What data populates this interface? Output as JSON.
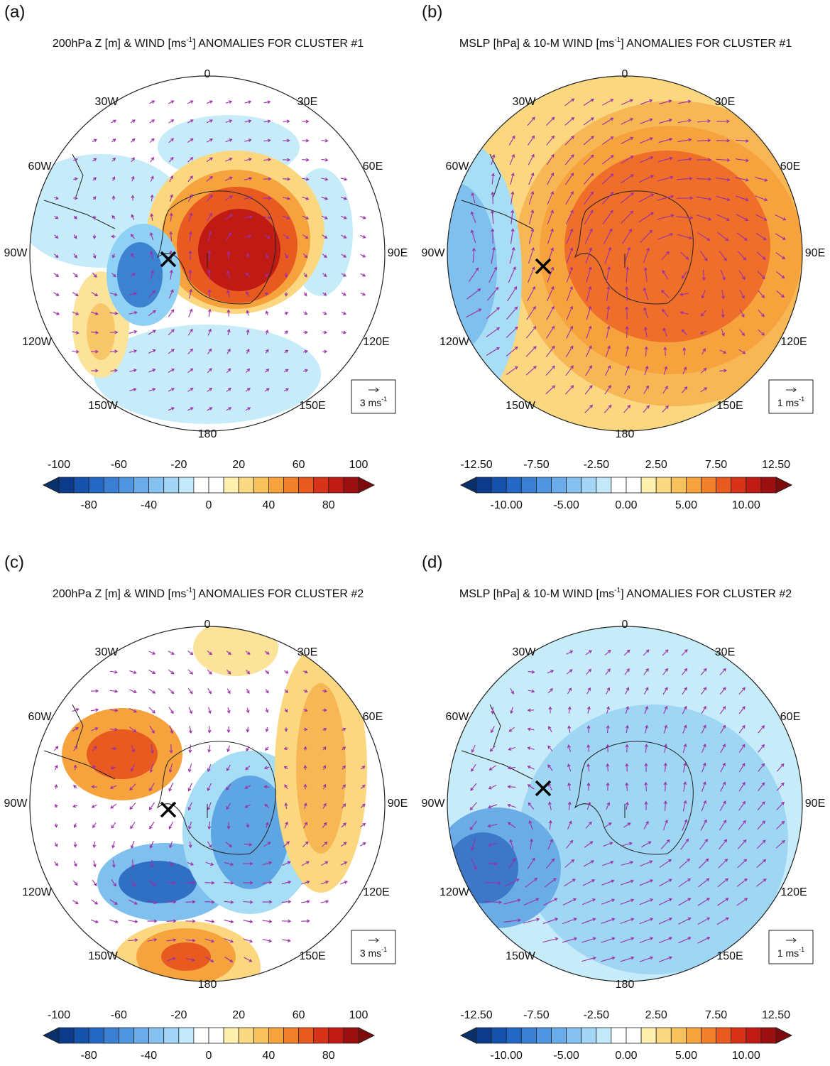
{
  "panels": [
    {
      "label": "(a)",
      "title": {
        "pre": "200hPa Z [m] & WIND [ms",
        "sup": "-1",
        "post": "] ANOMALIES FOR CLUSTER #1"
      },
      "longitudes": [
        "0",
        "30E",
        "60E",
        "90E",
        "120E",
        "150E",
        "180",
        "150W",
        "120W",
        "90W",
        "60W",
        "30W"
      ],
      "reference_vector": {
        "pre": "3 ms",
        "sup": "-1"
      },
      "colorbar": {
        "top_labels": [
          "-100",
          "-60",
          "-20",
          "20",
          "60",
          "100"
        ],
        "bottom_labels": [
          "-80",
          "-40",
          "0",
          "40",
          "80"
        ]
      }
    },
    {
      "label": "(b)",
      "title": {
        "pre": "MSLP [hPa] & 10-M WIND [ms",
        "sup": "-1",
        "post": "] ANOMALIES FOR CLUSTER #1"
      },
      "longitudes": [
        "0",
        "30E",
        "60E",
        "90E",
        "120E",
        "150E",
        "180",
        "150W",
        "120W",
        "90W",
        "60W",
        "30W"
      ],
      "reference_vector": {
        "pre": "1 ms",
        "sup": "-1"
      },
      "colorbar": {
        "top_labels": [
          "-12.50",
          "-7.50",
          "-2.50",
          "2.50",
          "7.50",
          "12.50"
        ],
        "bottom_labels": [
          "-10.00",
          "-5.00",
          "0.00",
          "5.00",
          "10.00"
        ]
      }
    },
    {
      "label": "(c)",
      "title": {
        "pre": "200hPa Z [m] & WIND [ms",
        "sup": "-1",
        "post": "] ANOMALIES FOR CLUSTER #2"
      },
      "longitudes": [
        "0",
        "30E",
        "60E",
        "90E",
        "120E",
        "150E",
        "180",
        "150W",
        "120W",
        "90W",
        "60W",
        "30W"
      ],
      "reference_vector": {
        "pre": "3 ms",
        "sup": "-1"
      },
      "colorbar": {
        "top_labels": [
          "-100",
          "-60",
          "-20",
          "20",
          "60",
          "100"
        ],
        "bottom_labels": [
          "-80",
          "-40",
          "0",
          "40",
          "80"
        ]
      }
    },
    {
      "label": "(d)",
      "title": {
        "pre": "MSLP [hPa] & 10-M WIND [ms",
        "sup": "-1",
        "post": "] ANOMALIES FOR CLUSTER #2"
      },
      "longitudes": [
        "0",
        "30E",
        "60E",
        "90E",
        "120E",
        "150E",
        "180",
        "150W",
        "120W",
        "90W",
        "60W",
        "30W"
      ],
      "reference_vector": {
        "pre": "1 ms",
        "sup": "-1"
      },
      "colorbar": {
        "top_labels": [
          "-12.50",
          "-7.50",
          "-2.50",
          "2.50",
          "7.50",
          "12.50"
        ],
        "bottom_labels": [
          "-10.00",
          "-5.00",
          "0.00",
          "5.00",
          "10.00"
        ]
      }
    }
  ]
}
